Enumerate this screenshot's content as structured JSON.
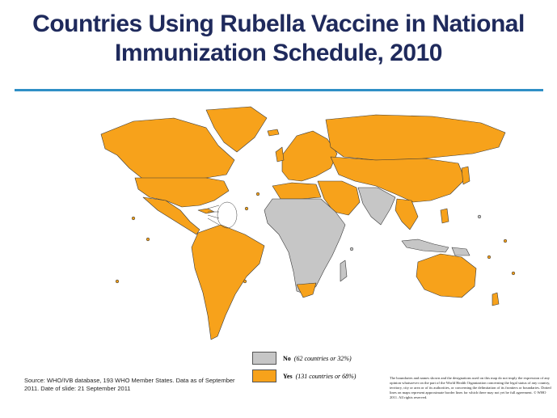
{
  "title": {
    "line1": "Countries Using Rubella Vaccine in National",
    "line2": "Immunization Schedule, 2010"
  },
  "colors": {
    "yes": "#f7a21b",
    "no": "#c6c6c6",
    "title": "#1f2a5c",
    "rule": "#2f8fc6",
    "border": "#3a3a3a"
  },
  "legend": {
    "items": [
      {
        "label": "No",
        "detail": "(62 countries or 32%)",
        "color": "#c6c6c6"
      },
      {
        "label": "Yes",
        "detail": "(131 countries or 68%)",
        "color": "#f7a21b"
      }
    ]
  },
  "source": {
    "line1": "Source: WHO/IVB database, 193 WHO Member States. Data as of September",
    "line2": "2011. Date of slide: 21 September 2011"
  },
  "disclaimer": "The boundaries and names shown and the designations used on this map do not imply the expression of any opinion whatsoever on the part of the World Health Organization concerning the legal status of any country, territory, city or area or of its authorities, or concerning the delimitation of its frontiers or boundaries. Dotted lines on maps represent approximate border lines for which there may not yet be full agreement. © WHO 2011. All rights reserved."
}
